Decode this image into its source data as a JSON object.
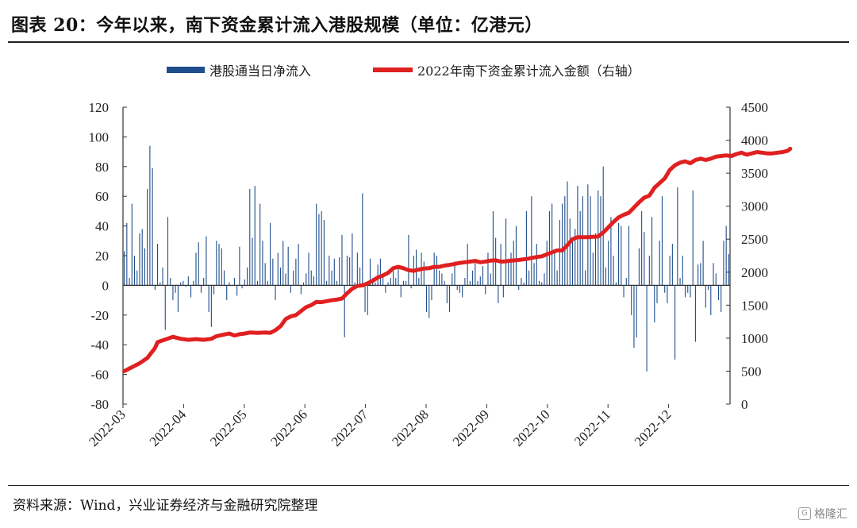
{
  "title": "图表 20：今年以来，南下资金累计流入港股规模（单位：亿港元）",
  "source": "资料来源：Wind，兴业证券经济与金融研究院整理",
  "watermark": "格隆汇",
  "colors": {
    "bar": "#1f4e8c",
    "line": "#e02020",
    "axis": "#333333"
  },
  "chart_data": {
    "type": "bar+line",
    "legend_position": "top",
    "grid": false,
    "x_ticks": [
      "2022-03",
      "2022-04",
      "2022-05",
      "2022-06",
      "2022-07",
      "2022-08",
      "2022-09",
      "2022-10",
      "2022-11",
      "2022-12"
    ],
    "y_left": {
      "min": -80,
      "max": 120,
      "ticks": [
        -80,
        -60,
        -40,
        -20,
        0,
        20,
        40,
        60,
        80,
        100,
        120
      ]
    },
    "y_right": {
      "min": 0,
      "max": 4500,
      "ticks": [
        0,
        500,
        1000,
        1500,
        2000,
        2500,
        3000,
        3500,
        4000,
        4500
      ]
    },
    "series": [
      {
        "name": "港股通当日净流入",
        "axis": "left",
        "type": "bar",
        "values": [
          23,
          42,
          5,
          55,
          20,
          10,
          35,
          38,
          25,
          65,
          94,
          79,
          -3,
          28,
          2,
          12,
          -30,
          46,
          5,
          -10,
          -5,
          -18,
          2,
          3,
          -1,
          6,
          -8,
          3,
          22,
          29,
          -5,
          5,
          33,
          -18,
          -28,
          -6,
          30,
          28,
          25,
          10,
          -10,
          2,
          0,
          5,
          -7,
          26,
          -2,
          4,
          12,
          65,
          32,
          67,
          3,
          55,
          30,
          15,
          3,
          42,
          18,
          -10,
          22,
          12,
          30,
          8,
          26,
          -5,
          10,
          18,
          28,
          -6,
          2,
          8,
          22,
          10,
          6,
          55,
          48,
          50,
          44,
          3,
          20,
          10,
          18,
          3,
          19,
          34,
          -35,
          20,
          19,
          35,
          2,
          22,
          12,
          62,
          -18,
          -20,
          18,
          5,
          2,
          14,
          18,
          7,
          -5,
          2,
          5,
          10,
          5,
          12,
          -8,
          3,
          3,
          34,
          -2,
          20,
          24,
          5,
          22,
          16,
          -18,
          -22,
          -10,
          22,
          20,
          10,
          8,
          3,
          -12,
          -18,
          8,
          16,
          -3,
          -5,
          -8,
          5,
          28,
          3,
          10,
          15,
          3,
          6,
          13,
          -6,
          22,
          8,
          50,
          32,
          -12,
          28,
          -8,
          45,
          18,
          22,
          30,
          40,
          -3,
          5,
          2,
          50,
          10,
          60,
          15,
          28,
          3,
          2,
          8,
          30,
          50,
          55,
          22,
          10,
          44,
          55,
          60,
          70,
          45,
          32,
          38,
          67,
          50,
          60,
          10,
          68,
          60,
          22,
          35,
          64,
          60,
          80,
          12,
          30,
          46,
          20,
          2,
          42,
          40,
          -8,
          5,
          40,
          -20,
          -42,
          -35,
          25,
          50,
          36,
          -58,
          20,
          46,
          -25,
          -12,
          30,
          60,
          -5,
          -12,
          20,
          28,
          -50,
          66,
          5,
          20,
          -8,
          -5,
          -8,
          64,
          -38,
          14,
          15,
          30,
          -15,
          -3,
          -20,
          15,
          8,
          -10,
          -18,
          30,
          40,
          21
        ]
      },
      {
        "name": "2022年南下资金累计流入金额（右轴）",
        "axis": "right",
        "type": "line",
        "points": [
          [
            0,
            500
          ],
          [
            3,
            560
          ],
          [
            6,
            620
          ],
          [
            9,
            700
          ],
          [
            12,
            850
          ],
          [
            13,
            940
          ],
          [
            16,
            980
          ],
          [
            19,
            1020
          ],
          [
            22,
            990
          ],
          [
            25,
            975
          ],
          [
            28,
            985
          ],
          [
            31,
            975
          ],
          [
            34,
            990
          ],
          [
            36,
            1030
          ],
          [
            39,
            1055
          ],
          [
            41,
            1070
          ],
          [
            43,
            1040
          ],
          [
            45,
            1060
          ],
          [
            47,
            1070
          ],
          [
            49,
            1085
          ],
          [
            52,
            1080
          ],
          [
            55,
            1085
          ],
          [
            57,
            1080
          ],
          [
            59,
            1120
          ],
          [
            61,
            1180
          ],
          [
            63,
            1290
          ],
          [
            65,
            1330
          ],
          [
            67,
            1350
          ],
          [
            69,
            1410
          ],
          [
            71,
            1470
          ],
          [
            73,
            1500
          ],
          [
            75,
            1550
          ],
          [
            77,
            1545
          ],
          [
            79,
            1560
          ],
          [
            81,
            1575
          ],
          [
            83,
            1585
          ],
          [
            85,
            1600
          ],
          [
            87,
            1680
          ],
          [
            89,
            1750
          ],
          [
            91,
            1790
          ],
          [
            93,
            1800
          ],
          [
            95,
            1830
          ],
          [
            97,
            1870
          ],
          [
            99,
            1920
          ],
          [
            101,
            1950
          ],
          [
            103,
            1990
          ],
          [
            105,
            2060
          ],
          [
            107,
            2080
          ],
          [
            109,
            2060
          ],
          [
            111,
            2030
          ],
          [
            113,
            2020
          ],
          [
            115,
            2040
          ],
          [
            117,
            2055
          ],
          [
            119,
            2060
          ],
          [
            121,
            2080
          ],
          [
            123,
            2080
          ],
          [
            125,
            2100
          ],
          [
            127,
            2110
          ],
          [
            129,
            2125
          ],
          [
            131,
            2140
          ],
          [
            133,
            2150
          ],
          [
            135,
            2160
          ],
          [
            137,
            2170
          ],
          [
            139,
            2150
          ],
          [
            141,
            2160
          ],
          [
            143,
            2175
          ],
          [
            145,
            2180
          ],
          [
            147,
            2160
          ],
          [
            149,
            2165
          ],
          [
            151,
            2175
          ],
          [
            153,
            2180
          ],
          [
            155,
            2190
          ],
          [
            157,
            2200
          ],
          [
            159,
            2215
          ],
          [
            161,
            2230
          ],
          [
            163,
            2240
          ],
          [
            165,
            2270
          ],
          [
            167,
            2300
          ],
          [
            169,
            2330
          ],
          [
            171,
            2330
          ],
          [
            173,
            2410
          ],
          [
            175,
            2500
          ],
          [
            177,
            2530
          ],
          [
            179,
            2530
          ],
          [
            181,
            2530
          ],
          [
            183,
            2535
          ],
          [
            185,
            2540
          ],
          [
            187,
            2600
          ],
          [
            189,
            2680
          ],
          [
            191,
            2760
          ],
          [
            193,
            2830
          ],
          [
            195,
            2870
          ],
          [
            197,
            2900
          ],
          [
            199,
            2980
          ],
          [
            201,
            3060
          ],
          [
            203,
            3130
          ],
          [
            205,
            3160
          ],
          [
            207,
            3280
          ],
          [
            209,
            3350
          ],
          [
            211,
            3420
          ],
          [
            213,
            3550
          ],
          [
            215,
            3620
          ],
          [
            217,
            3660
          ],
          [
            219,
            3680
          ],
          [
            221,
            3650
          ],
          [
            223,
            3700
          ],
          [
            225,
            3720
          ],
          [
            227,
            3700
          ],
          [
            229,
            3720
          ],
          [
            231,
            3750
          ],
          [
            233,
            3760
          ],
          [
            235,
            3770
          ],
          [
            237,
            3760
          ],
          [
            239,
            3790
          ],
          [
            241,
            3810
          ],
          [
            243,
            3780
          ],
          [
            245,
            3800
          ],
          [
            247,
            3820
          ],
          [
            249,
            3810
          ],
          [
            251,
            3800
          ],
          [
            253,
            3800
          ],
          [
            255,
            3810
          ],
          [
            257,
            3820
          ],
          [
            259,
            3840
          ],
          [
            260,
            3870
          ]
        ]
      }
    ]
  }
}
